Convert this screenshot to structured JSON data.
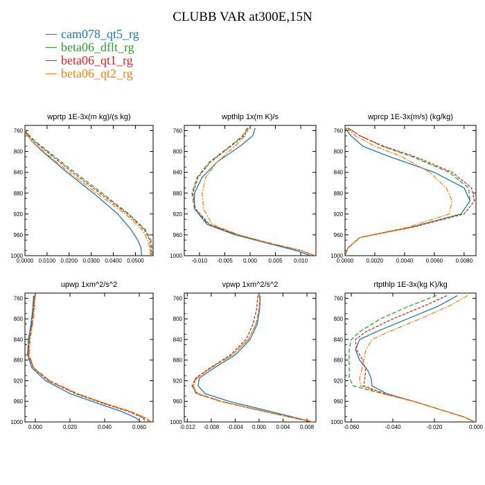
{
  "title": "CLUBB VAR at300E,15N",
  "legend": [
    {
      "name": "cam078_qt5_rg",
      "color": "#1f77b4"
    },
    {
      "name": "beta06_dflt_rg",
      "color": "#2ca02c"
    },
    {
      "name": "beta06_qt1_rg",
      "color": "#d62728"
    },
    {
      "name": "beta06_qt2_rg",
      "color": "#ff7f0e"
    }
  ],
  "chart_data": [
    {
      "type": "line",
      "title": "wprtp  1E-3x(m kg)/(s kg)",
      "xlabel": "",
      "ylabel": "",
      "xlim": [
        0.0,
        0.058
      ],
      "ylim": [
        1000,
        750
      ],
      "xticks": [
        0.0,
        0.01,
        0.02,
        0.03,
        0.04,
        0.05
      ],
      "xticklabels": [
        "0.0000",
        "0.0100",
        "0.0200",
        "0.0300",
        "0.0400",
        "0.0500"
      ],
      "yticks": [
        760,
        800,
        840,
        880,
        920,
        960,
        1000
      ],
      "yticklabels": [
        "760",
        "800",
        "840",
        "880",
        "920",
        "960",
        "1000"
      ],
      "y": [
        755,
        765,
        780,
        800,
        840,
        880,
        920,
        950,
        970,
        985,
        1000
      ],
      "series": [
        {
          "name": "cam078_qt5_rg",
          "x": [
            0.0,
            0.0005,
            0.003,
            0.008,
            0.019,
            0.031,
            0.042,
            0.048,
            0.051,
            0.0525,
            0.0528
          ]
        },
        {
          "name": "beta06_dflt_rg",
          "x": [
            0.0,
            0.001,
            0.0045,
            0.0105,
            0.0225,
            0.035,
            0.047,
            0.0545,
            0.057,
            0.0575,
            0.0575
          ]
        },
        {
          "name": "beta06_qt1_rg",
          "x": [
            0.0,
            0.0008,
            0.004,
            0.0098,
            0.0215,
            0.034,
            0.0465,
            0.054,
            0.0565,
            0.057,
            0.057
          ]
        },
        {
          "name": "beta06_qt2_rg",
          "x": [
            0.0,
            0.0004,
            0.003,
            0.0085,
            0.02,
            0.0325,
            0.0455,
            0.053,
            0.0555,
            0.0565,
            0.0568
          ]
        }
      ]
    },
    {
      "type": "line",
      "title": "wpthlp  1x(m K)/s",
      "xlabel": "",
      "ylabel": "",
      "xlim": [
        -0.013,
        0.013
      ],
      "ylim": [
        1000,
        750
      ],
      "xticks": [
        -0.01,
        -0.005,
        0.0,
        0.005,
        0.01
      ],
      "xticklabels": [
        "-0.010",
        "-0.005",
        "0.000",
        "0.005",
        "0.010"
      ],
      "yticks": [
        760,
        800,
        840,
        880,
        920,
        960,
        1000
      ],
      "yticklabels": [
        "760",
        "800",
        "840",
        "880",
        "920",
        "960",
        "1000"
      ],
      "y": [
        755,
        770,
        790,
        820,
        850,
        880,
        910,
        940,
        960,
        975,
        990,
        1000
      ],
      "series": [
        {
          "name": "cam078_qt5_rg",
          "x": [
            0.001,
            0.0005,
            -0.002,
            -0.0065,
            -0.0095,
            -0.011,
            -0.011,
            -0.0085,
            -0.003,
            0.003,
            0.009,
            0.012
          ]
        },
        {
          "name": "beta06_dflt_rg",
          "x": [
            -0.0005,
            -0.0015,
            -0.004,
            -0.008,
            -0.0105,
            -0.0115,
            -0.011,
            -0.0082,
            -0.0025,
            0.0035,
            0.01,
            0.0128
          ]
        },
        {
          "name": "beta06_qt1_rg",
          "x": [
            -0.0005,
            -0.0012,
            -0.0038,
            -0.0078,
            -0.0103,
            -0.0113,
            -0.0108,
            -0.008,
            -0.0025,
            0.0035,
            0.01,
            0.0128
          ]
        },
        {
          "name": "beta06_qt2_rg",
          "x": [
            -0.0003,
            -0.001,
            -0.003,
            -0.0065,
            -0.0088,
            -0.0095,
            -0.0092,
            -0.0075,
            -0.0022,
            0.0035,
            0.01,
            0.0128
          ]
        }
      ]
    },
    {
      "type": "line",
      "title": "wprcp  1E-3x(m/s) (kg/kg)",
      "xlabel": "",
      "ylabel": "",
      "xlim": [
        0.0,
        0.0088
      ],
      "ylim": [
        1000,
        750
      ],
      "xticks": [
        0.0,
        0.002,
        0.004,
        0.006,
        0.008
      ],
      "xticklabels": [
        "0.0000",
        "0.0020",
        "0.0040",
        "0.0060",
        "0.0080"
      ],
      "yticks": [
        760,
        800,
        840,
        880,
        920,
        960,
        1000
      ],
      "yticklabels": [
        "760",
        "800",
        "840",
        "880",
        "920",
        "960",
        "1000"
      ],
      "y": [
        755,
        770,
        790,
        810,
        840,
        870,
        895,
        920,
        945,
        965,
        985,
        1000
      ],
      "series": [
        {
          "name": "cam078_qt5_rg",
          "x": [
            0.0,
            0.0004,
            0.0012,
            0.003,
            0.006,
            0.008,
            0.0084,
            0.0078,
            0.0045,
            0.001,
            0.0002,
            0.0
          ]
        },
        {
          "name": "beta06_dflt_rg",
          "x": [
            0.0002,
            0.001,
            0.0025,
            0.0045,
            0.007,
            0.0083,
            0.0084,
            0.0078,
            0.0045,
            0.001,
            0.0002,
            0.0
          ]
        },
        {
          "name": "beta06_qt1_rg",
          "x": [
            0.0002,
            0.001,
            0.0026,
            0.0047,
            0.0072,
            0.0085,
            0.0087,
            0.008,
            0.0046,
            0.001,
            0.0002,
            0.0
          ]
        },
        {
          "name": "beta06_qt2_rg",
          "x": [
            0.0001,
            0.0007,
            0.002,
            0.0038,
            0.0057,
            0.0068,
            0.0072,
            0.007,
            0.0043,
            0.001,
            0.0002,
            0.0
          ]
        }
      ]
    },
    {
      "type": "line",
      "title": "upwp  1xm^2/s^2",
      "xlabel": "",
      "ylabel": "",
      "xlim": [
        -0.006,
        0.068
      ],
      "ylim": [
        1000,
        750
      ],
      "xticks": [
        0.0,
        0.02,
        0.04,
        0.06
      ],
      "xticklabels": [
        "0.000",
        "0.020",
        "0.040",
        "0.060"
      ],
      "yticks": [
        760,
        800,
        840,
        880,
        920,
        960,
        1000
      ],
      "yticklabels": [
        "760",
        "800",
        "840",
        "880",
        "920",
        "960",
        "1000"
      ],
      "y": [
        755,
        780,
        810,
        840,
        870,
        895,
        920,
        945,
        965,
        980,
        992,
        1000
      ],
      "series": [
        {
          "name": "cam078_qt5_rg",
          "x": [
            -0.001,
            -0.0015,
            -0.0025,
            -0.004,
            -0.0045,
            -0.002,
            0.006,
            0.02,
            0.037,
            0.05,
            0.058,
            0.061
          ]
        },
        {
          "name": "beta06_dflt_rg",
          "x": [
            -0.0005,
            -0.001,
            -0.002,
            -0.0035,
            -0.004,
            -0.001,
            0.008,
            0.024,
            0.041,
            0.055,
            0.063,
            0.066
          ]
        },
        {
          "name": "beta06_qt1_rg",
          "x": [
            -0.0005,
            -0.001,
            -0.002,
            -0.0035,
            -0.004,
            -0.0012,
            0.0075,
            0.023,
            0.04,
            0.054,
            0.062,
            0.064
          ]
        },
        {
          "name": "beta06_qt2_rg",
          "x": [
            0.0,
            -0.0005,
            -0.0015,
            -0.003,
            -0.0035,
            -0.0008,
            0.0085,
            0.0245,
            0.0415,
            0.0555,
            0.064,
            0.067
          ]
        }
      ]
    },
    {
      "type": "line",
      "title": "vpwp  1xm^2/s^2",
      "xlabel": "",
      "ylabel": "",
      "xlim": [
        -0.0125,
        0.0095
      ],
      "ylim": [
        1000,
        750
      ],
      "xticks": [
        -0.012,
        -0.008,
        -0.004,
        0.0,
        0.004,
        0.008
      ],
      "xticklabels": [
        "-0.012",
        "-0.008",
        "-0.004",
        "0.000",
        "0.004",
        "0.008"
      ],
      "yticks": [
        760,
        800,
        840,
        880,
        920,
        960,
        1000
      ],
      "yticklabels": [
        "760",
        "800",
        "840",
        "880",
        "920",
        "960",
        "1000"
      ],
      "y": [
        755,
        780,
        810,
        840,
        870,
        895,
        915,
        930,
        945,
        960,
        980,
        1000
      ],
      "series": [
        {
          "name": "cam078_qt5_rg",
          "x": [
            0.0002,
            0.0001,
            -0.0003,
            -0.0015,
            -0.004,
            -0.0075,
            -0.01,
            -0.0102,
            -0.009,
            -0.005,
            0.002,
            0.009
          ]
        },
        {
          "name": "beta06_dflt_rg",
          "x": [
            0.0001,
            0.0,
            -0.0005,
            -0.0018,
            -0.0045,
            -0.008,
            -0.0105,
            -0.0112,
            -0.0105,
            -0.0065,
            0.001,
            0.009
          ]
        },
        {
          "name": "beta06_qt1_rg",
          "x": [
            -0.0002,
            -0.0004,
            -0.001,
            -0.0022,
            -0.0048,
            -0.0082,
            -0.0106,
            -0.0112,
            -0.0104,
            -0.0064,
            0.001,
            0.0088
          ]
        },
        {
          "name": "beta06_qt2_rg",
          "x": [
            0.0001,
            0.0,
            -0.0005,
            -0.0018,
            -0.0045,
            -0.008,
            -0.0104,
            -0.011,
            -0.0102,
            -0.0062,
            0.0012,
            0.009
          ]
        }
      ]
    },
    {
      "type": "line",
      "title": "rtpthlp  1E-3x(kg K)/kg",
      "xlabel": "",
      "ylabel": "",
      "xlim": [
        -0.063,
        0.0
      ],
      "ylim": [
        1000,
        750
      ],
      "xticks": [
        -0.06,
        -0.04,
        -0.02,
        0.0
      ],
      "xticklabels": [
        "-0.060",
        "-0.040",
        "-0.020",
        "0.000"
      ],
      "yticks": [
        760,
        800,
        840,
        880,
        920,
        960,
        1000
      ],
      "yticklabels": [
        "760",
        "800",
        "840",
        "880",
        "920",
        "960",
        "1000"
      ],
      "y": [
        755,
        775,
        800,
        825,
        840,
        860,
        880,
        900,
        915,
        930,
        945,
        960,
        975,
        990,
        1000
      ],
      "series": [
        {
          "name": "cam078_qt5_rg",
          "x": [
            -0.009,
            -0.018,
            -0.033,
            -0.048,
            -0.056,
            -0.058,
            -0.056,
            -0.052,
            -0.0505,
            -0.05,
            -0.043,
            -0.03,
            -0.018,
            -0.006,
            -0.0005
          ]
        },
        {
          "name": "beta06_dflt_rg",
          "x": [
            -0.019,
            -0.032,
            -0.046,
            -0.056,
            -0.06,
            -0.061,
            -0.061,
            -0.061,
            -0.061,
            -0.059,
            -0.045,
            -0.03,
            -0.018,
            -0.006,
            -0.0005
          ]
        },
        {
          "name": "beta06_qt1_rg",
          "x": [
            -0.014,
            -0.025,
            -0.04,
            -0.053,
            -0.058,
            -0.0575,
            -0.0545,
            -0.053,
            -0.0535,
            -0.054,
            -0.044,
            -0.03,
            -0.018,
            -0.006,
            -0.0005
          ]
        },
        {
          "name": "beta06_qt2_rg",
          "x": [
            -0.004,
            -0.013,
            -0.027,
            -0.042,
            -0.05,
            -0.053,
            -0.054,
            -0.055,
            -0.056,
            -0.0555,
            -0.045,
            -0.03,
            -0.018,
            -0.006,
            -0.0005
          ]
        }
      ]
    }
  ]
}
